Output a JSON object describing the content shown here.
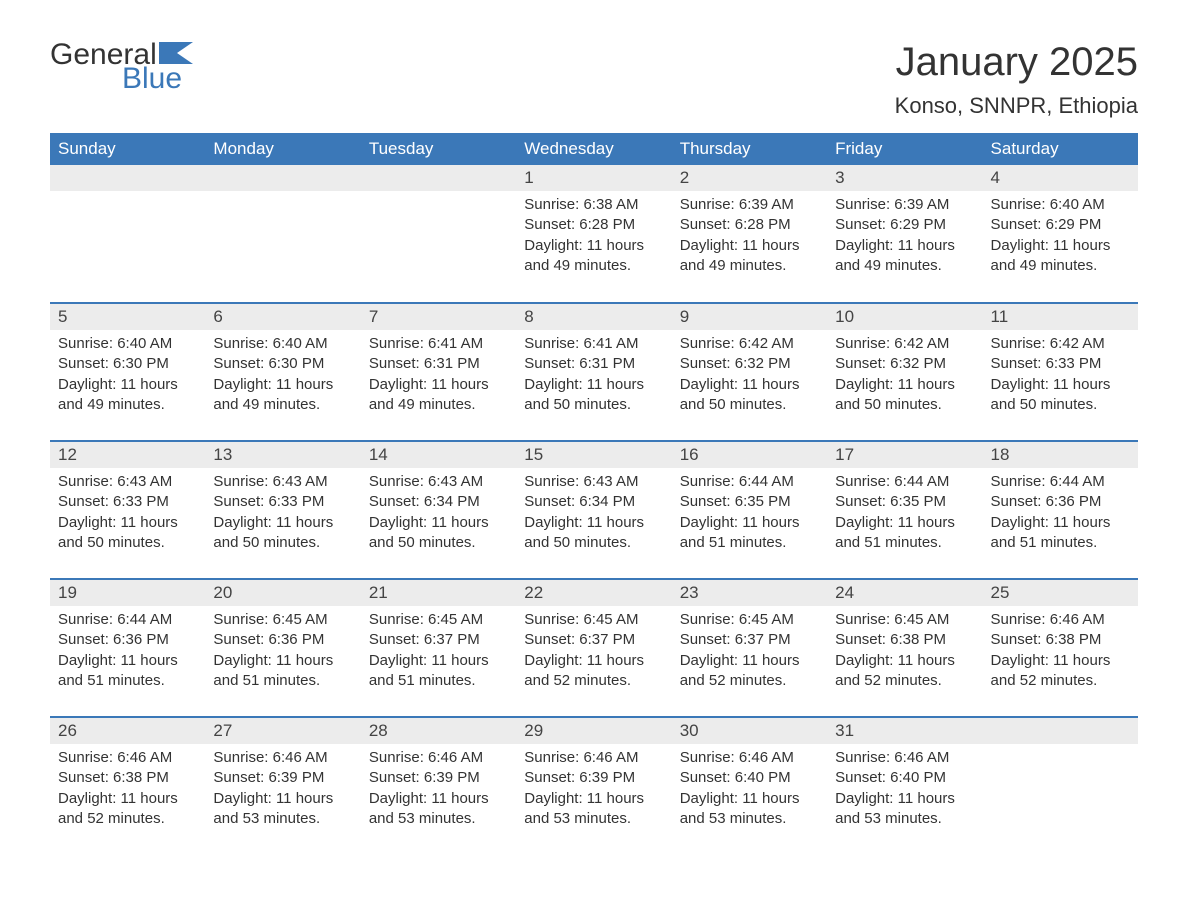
{
  "logo": {
    "general": "General",
    "blue": "Blue",
    "accent_color": "#3b78b8"
  },
  "title": "January 2025",
  "location": "Konso, SNNPR, Ethiopia",
  "colors": {
    "header_bg": "#3b78b8",
    "header_text": "#ffffff",
    "daynum_bg": "#ececec",
    "text": "#333333",
    "row_border": "#3b78b8",
    "page_bg": "#ffffff"
  },
  "typography": {
    "title_fontsize": 40,
    "location_fontsize": 22,
    "weekday_fontsize": 17,
    "daynum_fontsize": 17,
    "details_fontsize": 15
  },
  "weekdays": [
    "Sunday",
    "Monday",
    "Tuesday",
    "Wednesday",
    "Thursday",
    "Friday",
    "Saturday"
  ],
  "weeks": [
    [
      null,
      null,
      null,
      {
        "n": "1",
        "sunrise": "Sunrise: 6:38 AM",
        "sunset": "Sunset: 6:28 PM",
        "d1": "Daylight: 11 hours",
        "d2": "and 49 minutes."
      },
      {
        "n": "2",
        "sunrise": "Sunrise: 6:39 AM",
        "sunset": "Sunset: 6:28 PM",
        "d1": "Daylight: 11 hours",
        "d2": "and 49 minutes."
      },
      {
        "n": "3",
        "sunrise": "Sunrise: 6:39 AM",
        "sunset": "Sunset: 6:29 PM",
        "d1": "Daylight: 11 hours",
        "d2": "and 49 minutes."
      },
      {
        "n": "4",
        "sunrise": "Sunrise: 6:40 AM",
        "sunset": "Sunset: 6:29 PM",
        "d1": "Daylight: 11 hours",
        "d2": "and 49 minutes."
      }
    ],
    [
      {
        "n": "5",
        "sunrise": "Sunrise: 6:40 AM",
        "sunset": "Sunset: 6:30 PM",
        "d1": "Daylight: 11 hours",
        "d2": "and 49 minutes."
      },
      {
        "n": "6",
        "sunrise": "Sunrise: 6:40 AM",
        "sunset": "Sunset: 6:30 PM",
        "d1": "Daylight: 11 hours",
        "d2": "and 49 minutes."
      },
      {
        "n": "7",
        "sunrise": "Sunrise: 6:41 AM",
        "sunset": "Sunset: 6:31 PM",
        "d1": "Daylight: 11 hours",
        "d2": "and 49 minutes."
      },
      {
        "n": "8",
        "sunrise": "Sunrise: 6:41 AM",
        "sunset": "Sunset: 6:31 PM",
        "d1": "Daylight: 11 hours",
        "d2": "and 50 minutes."
      },
      {
        "n": "9",
        "sunrise": "Sunrise: 6:42 AM",
        "sunset": "Sunset: 6:32 PM",
        "d1": "Daylight: 11 hours",
        "d2": "and 50 minutes."
      },
      {
        "n": "10",
        "sunrise": "Sunrise: 6:42 AM",
        "sunset": "Sunset: 6:32 PM",
        "d1": "Daylight: 11 hours",
        "d2": "and 50 minutes."
      },
      {
        "n": "11",
        "sunrise": "Sunrise: 6:42 AM",
        "sunset": "Sunset: 6:33 PM",
        "d1": "Daylight: 11 hours",
        "d2": "and 50 minutes."
      }
    ],
    [
      {
        "n": "12",
        "sunrise": "Sunrise: 6:43 AM",
        "sunset": "Sunset: 6:33 PM",
        "d1": "Daylight: 11 hours",
        "d2": "and 50 minutes."
      },
      {
        "n": "13",
        "sunrise": "Sunrise: 6:43 AM",
        "sunset": "Sunset: 6:33 PM",
        "d1": "Daylight: 11 hours",
        "d2": "and 50 minutes."
      },
      {
        "n": "14",
        "sunrise": "Sunrise: 6:43 AM",
        "sunset": "Sunset: 6:34 PM",
        "d1": "Daylight: 11 hours",
        "d2": "and 50 minutes."
      },
      {
        "n": "15",
        "sunrise": "Sunrise: 6:43 AM",
        "sunset": "Sunset: 6:34 PM",
        "d1": "Daylight: 11 hours",
        "d2": "and 50 minutes."
      },
      {
        "n": "16",
        "sunrise": "Sunrise: 6:44 AM",
        "sunset": "Sunset: 6:35 PM",
        "d1": "Daylight: 11 hours",
        "d2": "and 51 minutes."
      },
      {
        "n": "17",
        "sunrise": "Sunrise: 6:44 AM",
        "sunset": "Sunset: 6:35 PM",
        "d1": "Daylight: 11 hours",
        "d2": "and 51 minutes."
      },
      {
        "n": "18",
        "sunrise": "Sunrise: 6:44 AM",
        "sunset": "Sunset: 6:36 PM",
        "d1": "Daylight: 11 hours",
        "d2": "and 51 minutes."
      }
    ],
    [
      {
        "n": "19",
        "sunrise": "Sunrise: 6:44 AM",
        "sunset": "Sunset: 6:36 PM",
        "d1": "Daylight: 11 hours",
        "d2": "and 51 minutes."
      },
      {
        "n": "20",
        "sunrise": "Sunrise: 6:45 AM",
        "sunset": "Sunset: 6:36 PM",
        "d1": "Daylight: 11 hours",
        "d2": "and 51 minutes."
      },
      {
        "n": "21",
        "sunrise": "Sunrise: 6:45 AM",
        "sunset": "Sunset: 6:37 PM",
        "d1": "Daylight: 11 hours",
        "d2": "and 51 minutes."
      },
      {
        "n": "22",
        "sunrise": "Sunrise: 6:45 AM",
        "sunset": "Sunset: 6:37 PM",
        "d1": "Daylight: 11 hours",
        "d2": "and 52 minutes."
      },
      {
        "n": "23",
        "sunrise": "Sunrise: 6:45 AM",
        "sunset": "Sunset: 6:37 PM",
        "d1": "Daylight: 11 hours",
        "d2": "and 52 minutes."
      },
      {
        "n": "24",
        "sunrise": "Sunrise: 6:45 AM",
        "sunset": "Sunset: 6:38 PM",
        "d1": "Daylight: 11 hours",
        "d2": "and 52 minutes."
      },
      {
        "n": "25",
        "sunrise": "Sunrise: 6:46 AM",
        "sunset": "Sunset: 6:38 PM",
        "d1": "Daylight: 11 hours",
        "d2": "and 52 minutes."
      }
    ],
    [
      {
        "n": "26",
        "sunrise": "Sunrise: 6:46 AM",
        "sunset": "Sunset: 6:38 PM",
        "d1": "Daylight: 11 hours",
        "d2": "and 52 minutes."
      },
      {
        "n": "27",
        "sunrise": "Sunrise: 6:46 AM",
        "sunset": "Sunset: 6:39 PM",
        "d1": "Daylight: 11 hours",
        "d2": "and 53 minutes."
      },
      {
        "n": "28",
        "sunrise": "Sunrise: 6:46 AM",
        "sunset": "Sunset: 6:39 PM",
        "d1": "Daylight: 11 hours",
        "d2": "and 53 minutes."
      },
      {
        "n": "29",
        "sunrise": "Sunrise: 6:46 AM",
        "sunset": "Sunset: 6:39 PM",
        "d1": "Daylight: 11 hours",
        "d2": "and 53 minutes."
      },
      {
        "n": "30",
        "sunrise": "Sunrise: 6:46 AM",
        "sunset": "Sunset: 6:40 PM",
        "d1": "Daylight: 11 hours",
        "d2": "and 53 minutes."
      },
      {
        "n": "31",
        "sunrise": "Sunrise: 6:46 AM",
        "sunset": "Sunset: 6:40 PM",
        "d1": "Daylight: 11 hours",
        "d2": "and 53 minutes."
      },
      null
    ]
  ]
}
